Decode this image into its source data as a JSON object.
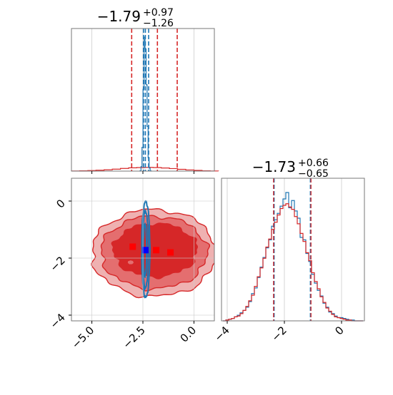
{
  "chart_data": {
    "type": "corner",
    "panels": [
      {
        "id": "marginal-x",
        "type": "histogram",
        "title": {
          "value": "−1.79",
          "plus": "+0.97",
          "minus": "−1.26"
        },
        "xlim": [
          -6,
          1
        ],
        "quantiles_red": [
          -3.05,
          -1.79,
          -0.82
        ],
        "quantiles_blue": [
          -2.47,
          -2.38,
          -2.22
        ],
        "red_hist": {
          "color": "#d62728",
          "centers": [
            -5.8,
            -5.4,
            -5.0,
            -4.6,
            -4.2,
            -3.8,
            -3.4,
            -3.0,
            -2.6,
            -2.2,
            -1.8,
            -1.4,
            -1.0,
            -0.6,
            -0.2,
            0.2,
            0.6,
            1.0
          ],
          "counts": [
            0.01,
            0.02,
            0.04,
            0.06,
            0.09,
            0.13,
            0.18,
            0.22,
            0.24,
            0.25,
            0.24,
            0.21,
            0.17,
            0.12,
            0.08,
            0.05,
            0.02,
            0.01
          ]
        },
        "blue_hist": {
          "color": "#1f77b4",
          "centers": [
            -2.62,
            -2.57,
            -2.52,
            -2.47,
            -2.42,
            -2.37,
            -2.32,
            -2.27,
            -2.22,
            -2.17,
            -2.12
          ],
          "counts": [
            0.02,
            0.3,
            1.6,
            5.5,
            9.0,
            8.2,
            5.8,
            3.0,
            0.9,
            0.2,
            0.02
          ]
        }
      },
      {
        "id": "marginal-y",
        "type": "histogram",
        "title": {
          "value": "−1.73",
          "plus": "+0.66",
          "minus": "−0.65"
        },
        "xlim": [
          -4.2,
          0.8
        ],
        "xticks": [
          "−4",
          "−2",
          "0"
        ],
        "xtick_values": [
          -4,
          -2,
          0
        ],
        "quantiles_red": [
          -2.38,
          -1.73,
          -1.07
        ],
        "quantiles_blue": [
          -2.36,
          -1.75,
          -1.09
        ],
        "red_hist": {
          "color": "#d62728",
          "centers": [
            -4.1,
            -4.0,
            -3.9,
            -3.8,
            -3.7,
            -3.6,
            -3.5,
            -3.4,
            -3.3,
            -3.2,
            -3.1,
            -3.0,
            -2.9,
            -2.8,
            -2.7,
            -2.6,
            -2.5,
            -2.4,
            -2.3,
            -2.2,
            -2.1,
            -2.0,
            -1.9,
            -1.8,
            -1.7,
            -1.6,
            -1.5,
            -1.4,
            -1.3,
            -1.2,
            -1.1,
            -1.0,
            -0.9,
            -0.8,
            -0.7,
            -0.6,
            -0.5,
            -0.4,
            -0.3,
            -0.2,
            -0.1,
            0.0,
            0.1,
            0.2,
            0.3,
            0.4,
            0.5,
            0.6,
            0.7
          ],
          "counts": [
            0,
            1,
            2,
            3,
            5,
            6,
            9,
            13,
            18,
            25,
            32,
            43,
            55,
            66,
            78,
            92,
            102,
            114,
            123,
            132,
            140,
            144,
            146,
            142,
            139,
            130,
            121,
            109,
            99,
            85,
            75,
            60,
            49,
            40,
            30,
            23,
            16,
            12,
            8,
            5,
            4,
            3,
            2,
            1,
            1,
            0,
            0,
            0,
            0
          ]
        },
        "blue_hist": {
          "color": "#1f77b4",
          "centers": [
            -4.1,
            -4.0,
            -3.9,
            -3.8,
            -3.7,
            -3.6,
            -3.5,
            -3.4,
            -3.3,
            -3.2,
            -3.1,
            -3.0,
            -2.9,
            -2.8,
            -2.7,
            -2.6,
            -2.5,
            -2.4,
            -2.3,
            -2.2,
            -2.1,
            -2.0,
            -1.9,
            -1.8,
            -1.7,
            -1.6,
            -1.5,
            -1.4,
            -1.3,
            -1.2,
            -1.1,
            -1.0,
            -0.9,
            -0.8,
            -0.7,
            -0.6,
            -0.5,
            -0.4,
            -0.3,
            -0.2,
            -0.1,
            0.0,
            0.1,
            0.2,
            0.3,
            0.4,
            0.5,
            0.6,
            0.7
          ],
          "counts": [
            0,
            1,
            2,
            3,
            5,
            7,
            10,
            13,
            17,
            24,
            34,
            41,
            54,
            67,
            79,
            91,
            101,
            118,
            126,
            134,
            143,
            152,
            160,
            141,
            150,
            137,
            128,
            104,
            101,
            84,
            74,
            58,
            47,
            38,
            31,
            22,
            17,
            11,
            9,
            6,
            4,
            4,
            3,
            2,
            1,
            1,
            0,
            0,
            0
          ]
        }
      },
      {
        "id": "joint",
        "type": "contour",
        "xlim": [
          -6,
          1
        ],
        "ylim": [
          -4.2,
          0.8
        ],
        "xticks": [
          "−5.0",
          "−2.5",
          "0.0"
        ],
        "xtick_values": [
          -5,
          -2.5,
          0
        ],
        "yticks": [
          "−4",
          "−2",
          "0"
        ],
        "ytick_values": [
          -4,
          -2,
          0
        ],
        "red_colors": {
          "outer": "#efb1b1",
          "middle": "#e46e6f",
          "inner": "#d62728",
          "line": "#d62728"
        },
        "blue_color": "#1f77b4",
        "red_markers": [
          {
            "x": -3.0,
            "y": -1.6
          },
          {
            "x": -1.85,
            "y": -1.72
          },
          {
            "x": -1.15,
            "y": -1.8
          }
        ],
        "blue_marker": {
          "x": -2.38,
          "y": -1.72
        }
      }
    ]
  }
}
